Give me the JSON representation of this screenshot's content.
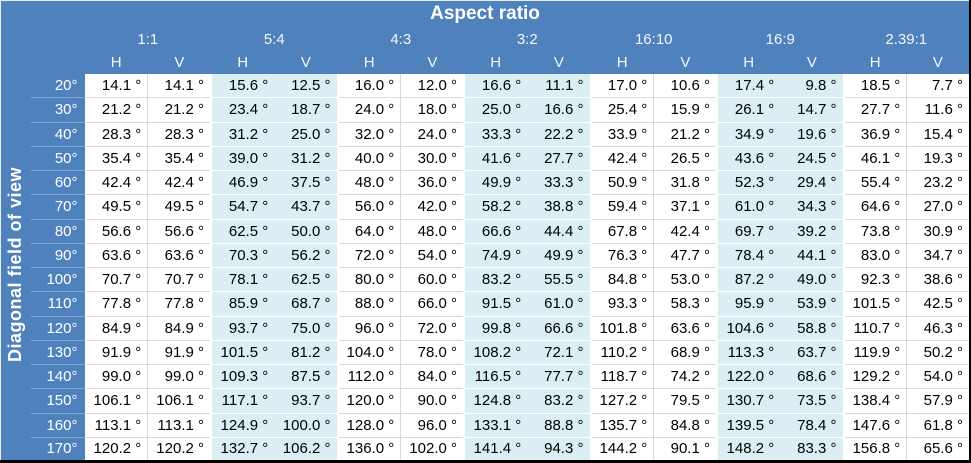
{
  "colors": {
    "header_blue": "#4f81bd",
    "stripe_blue": "#daeef3",
    "stripe_white": "#ffffff",
    "grid_gray": "#d9d9d9",
    "outer_border": "#000000",
    "header_text": "#ffffff",
    "data_text": "#000000"
  },
  "chart_data": {
    "type": "table",
    "title": "Aspect ratio",
    "row_axis_label": "Diagonal field of view",
    "column_groups": [
      "1:1",
      "5:4",
      "4:3",
      "3:2",
      "16:10",
      "16:9",
      "2.39:1"
    ],
    "sub_columns": [
      "H",
      "V"
    ],
    "unit_suffix": "°",
    "row_labels": [
      "20°",
      "30°",
      "40°",
      "50°",
      "60°",
      "70°",
      "80°",
      "90°",
      "100°",
      "110°",
      "120°",
      "130°",
      "140°",
      "150°",
      "160°",
      "170°"
    ],
    "rows": [
      [
        14.1,
        14.1,
        15.6,
        12.5,
        16.0,
        12.0,
        16.6,
        11.1,
        17.0,
        10.6,
        17.4,
        9.8,
        18.5,
        7.7
      ],
      [
        21.2,
        21.2,
        23.4,
        18.7,
        24.0,
        18.0,
        25.0,
        16.6,
        25.4,
        15.9,
        26.1,
        14.7,
        27.7,
        11.6
      ],
      [
        28.3,
        28.3,
        31.2,
        25.0,
        32.0,
        24.0,
        33.3,
        22.2,
        33.9,
        21.2,
        34.9,
        19.6,
        36.9,
        15.4
      ],
      [
        35.4,
        35.4,
        39.0,
        31.2,
        40.0,
        30.0,
        41.6,
        27.7,
        42.4,
        26.5,
        43.6,
        24.5,
        46.1,
        19.3
      ],
      [
        42.4,
        42.4,
        46.9,
        37.5,
        48.0,
        36.0,
        49.9,
        33.3,
        50.9,
        31.8,
        52.3,
        29.4,
        55.4,
        23.2
      ],
      [
        49.5,
        49.5,
        54.7,
        43.7,
        56.0,
        42.0,
        58.2,
        38.8,
        59.4,
        37.1,
        61.0,
        34.3,
        64.6,
        27.0
      ],
      [
        56.6,
        56.6,
        62.5,
        50.0,
        64.0,
        48.0,
        66.6,
        44.4,
        67.8,
        42.4,
        69.7,
        39.2,
        73.8,
        30.9
      ],
      [
        63.6,
        63.6,
        70.3,
        56.2,
        72.0,
        54.0,
        74.9,
        49.9,
        76.3,
        47.7,
        78.4,
        44.1,
        83.0,
        34.7
      ],
      [
        70.7,
        70.7,
        78.1,
        62.5,
        80.0,
        60.0,
        83.2,
        55.5,
        84.8,
        53.0,
        87.2,
        49.0,
        92.3,
        38.6
      ],
      [
        77.8,
        77.8,
        85.9,
        68.7,
        88.0,
        66.0,
        91.5,
        61.0,
        93.3,
        58.3,
        95.9,
        53.9,
        101.5,
        42.5
      ],
      [
        84.9,
        84.9,
        93.7,
        75.0,
        96.0,
        72.0,
        99.8,
        66.6,
        101.8,
        63.6,
        104.6,
        58.8,
        110.7,
        46.3
      ],
      [
        91.9,
        91.9,
        101.5,
        81.2,
        104.0,
        78.0,
        108.2,
        72.1,
        110.2,
        68.9,
        113.3,
        63.7,
        119.9,
        50.2
      ],
      [
        99.0,
        99.0,
        109.3,
        87.5,
        112.0,
        84.0,
        116.5,
        77.7,
        118.7,
        74.2,
        122.0,
        68.6,
        129.2,
        54.0
      ],
      [
        106.1,
        106.1,
        117.1,
        93.7,
        120.0,
        90.0,
        124.8,
        83.2,
        127.2,
        79.5,
        130.7,
        73.5,
        138.4,
        57.9
      ],
      [
        113.1,
        113.1,
        124.9,
        100.0,
        128.0,
        96.0,
        133.1,
        88.8,
        135.7,
        84.8,
        139.5,
        78.4,
        147.6,
        61.8
      ],
      [
        120.2,
        120.2,
        132.7,
        106.2,
        136.0,
        102.0,
        141.4,
        94.3,
        144.2,
        90.1,
        148.2,
        83.3,
        156.8,
        65.6
      ]
    ],
    "layout": {
      "group_striping": "odd-index groups shaded light blue",
      "values_alignment": "right",
      "grid": "row separators only"
    }
  }
}
